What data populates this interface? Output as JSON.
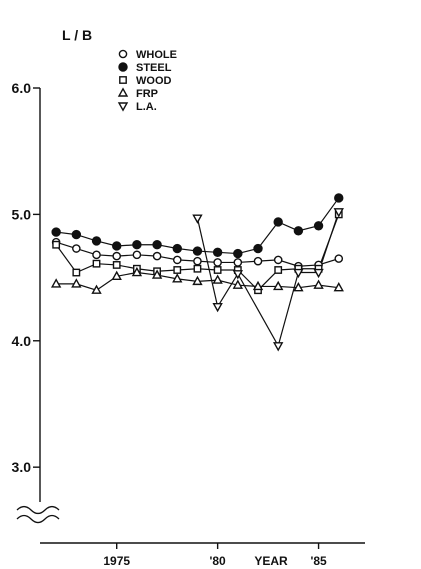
{
  "chart_data": {
    "type": "line",
    "ylabel": "L / B",
    "xlabel": "YEAR",
    "x": [
      1972,
      1973,
      1974,
      1975,
      1976,
      1977,
      1978,
      1979,
      1980,
      1981,
      1982,
      1983,
      1984,
      1985,
      1986
    ],
    "x_tick_labels": [
      {
        "x": 1975,
        "label": "1975"
      },
      {
        "x": 1980,
        "label": "'80"
      },
      {
        "x": 1985,
        "label": "'85"
      }
    ],
    "y_ticks": [
      {
        "y": 3.0,
        "label": "3.0"
      },
      {
        "y": 4.0,
        "label": "4.0"
      },
      {
        "y": 5.0,
        "label": "5.0"
      },
      {
        "y": 6.0,
        "label": "6.0"
      }
    ],
    "ylim": [
      2.4,
      6.0
    ],
    "xlim": [
      1971.2,
      1987.3
    ],
    "axis_break": true,
    "grid": false,
    "legend_position": "top-left",
    "series": [
      {
        "name": "WHOLE",
        "marker": "circle-open",
        "values": [
          4.78,
          4.73,
          4.68,
          4.67,
          4.68,
          4.67,
          4.64,
          4.63,
          4.62,
          4.62,
          4.63,
          4.64,
          4.59,
          4.6,
          4.65
        ]
      },
      {
        "name": "STEEL",
        "marker": "circle-filled",
        "values": [
          4.86,
          4.84,
          4.79,
          4.75,
          4.76,
          4.76,
          4.73,
          4.71,
          4.7,
          4.69,
          4.73,
          4.94,
          4.87,
          4.91,
          5.13
        ]
      },
      {
        "name": "WOOD",
        "marker": "square-open",
        "values": [
          4.76,
          4.54,
          4.61,
          4.6,
          4.57,
          4.55,
          4.56,
          4.57,
          4.56,
          4.56,
          4.4,
          4.56,
          4.57,
          4.57,
          5.0
        ]
      },
      {
        "name": "FRP",
        "marker": "triangle-up-open",
        "values": [
          4.45,
          4.45,
          4.4,
          4.51,
          4.54,
          4.52,
          4.49,
          4.47,
          4.48,
          4.44,
          4.43,
          4.43,
          4.42,
          4.44,
          4.42
        ]
      },
      {
        "name": "L.A.",
        "marker": "triangle-down-open",
        "values": [
          null,
          null,
          null,
          null,
          null,
          null,
          null,
          4.97,
          4.27,
          4.53,
          null,
          3.96,
          4.54,
          4.54,
          5.02
        ]
      }
    ]
  }
}
